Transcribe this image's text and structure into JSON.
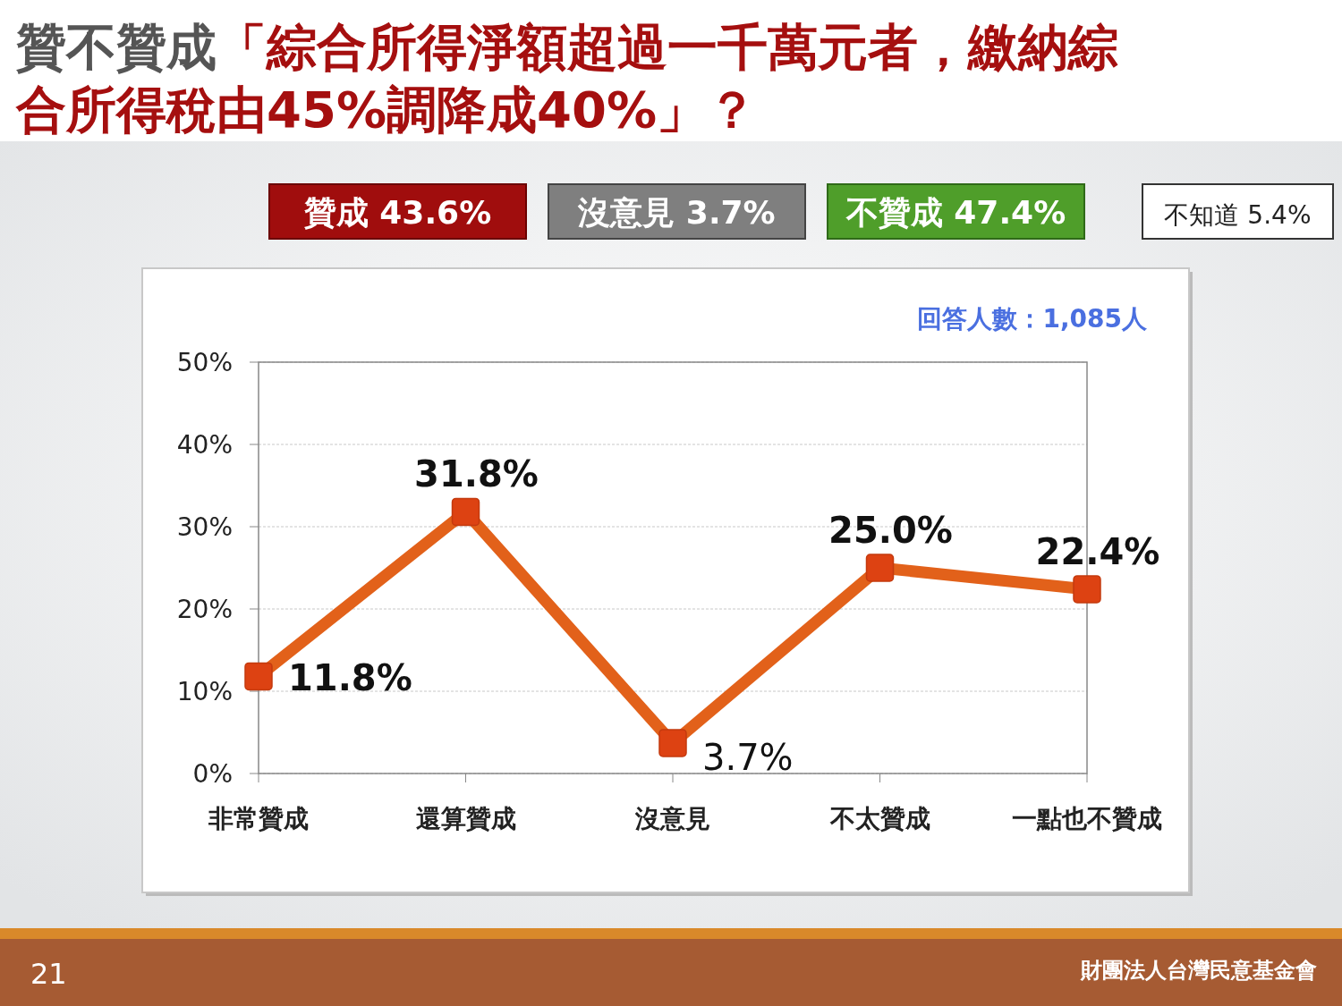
{
  "chart_data": {
    "type": "line",
    "title": "贊不贊成「綜合所得淨額超過一千萬元者，繳納綜合所得稅由45%調降成40%」？",
    "categories": [
      "非常贊成",
      "還算贊成",
      "沒意見",
      "不太贊成",
      "一點也不贊成"
    ],
    "series": [
      {
        "color": "#e2611a",
        "values": [
          11.8,
          31.8,
          3.7,
          25.0,
          22.4
        ],
        "value_labels": [
          "11.8%",
          "31.8%",
          "3.7%",
          "25.0%",
          "22.4%"
        ]
      }
    ],
    "ylim": [
      0,
      50
    ],
    "yticks": [
      {
        "value": 0,
        "label": "0%"
      },
      {
        "value": 10,
        "label": "10%"
      },
      {
        "value": 20,
        "label": "20%"
      },
      {
        "value": 30,
        "label": "30%"
      },
      {
        "value": 40,
        "label": "40%"
      },
      {
        "value": 50,
        "label": "50%"
      }
    ],
    "grid": "y",
    "marker": "square",
    "line_style": "solid",
    "annotations": [
      "贊成 43.6%",
      "沒意見 3.7%",
      "不贊成 47.4%",
      "不知道 5.4%",
      "回答人數：1,085人",
      "財團法人台灣民意基金會",
      "21"
    ]
  }
}
